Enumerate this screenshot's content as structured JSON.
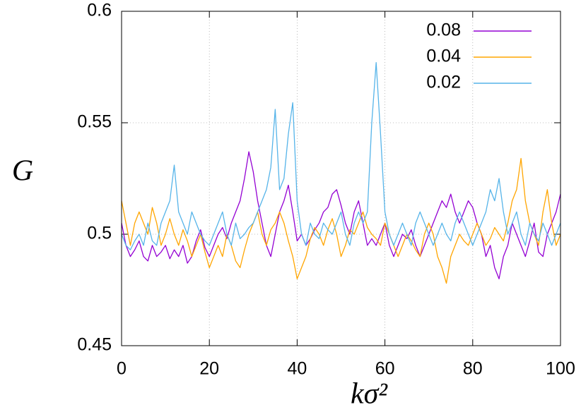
{
  "chart_data": {
    "type": "line",
    "x_label": "kσ²",
    "y_label": "G",
    "x": [
      0,
      1,
      2,
      3,
      4,
      5,
      6,
      7,
      8,
      9,
      10,
      11,
      12,
      13,
      14,
      15,
      16,
      17,
      18,
      19,
      20,
      21,
      22,
      23,
      24,
      25,
      26,
      27,
      28,
      29,
      30,
      31,
      32,
      33,
      34,
      35,
      36,
      37,
      38,
      39,
      40,
      41,
      42,
      43,
      44,
      45,
      46,
      47,
      48,
      49,
      50,
      51,
      52,
      53,
      54,
      55,
      56,
      57,
      58,
      59,
      60,
      61,
      62,
      63,
      64,
      65,
      66,
      67,
      68,
      69,
      70,
      71,
      72,
      73,
      74,
      75,
      76,
      77,
      78,
      79,
      80,
      81,
      82,
      83,
      84,
      85,
      86,
      87,
      88,
      89,
      90,
      91,
      92,
      93,
      94,
      95,
      96,
      97,
      98,
      99,
      100
    ],
    "series": [
      {
        "name": "0.08",
        "color": "#9400d3",
        "values": [
          0.505,
          0.495,
          0.49,
          0.493,
          0.497,
          0.49,
          0.488,
          0.495,
          0.49,
          0.492,
          0.495,
          0.489,
          0.493,
          0.49,
          0.495,
          0.487,
          0.49,
          0.497,
          0.502,
          0.494,
          0.49,
          0.495,
          0.5,
          0.503,
          0.498,
          0.505,
          0.51,
          0.515,
          0.525,
          0.537,
          0.528,
          0.515,
          0.505,
          0.495,
          0.49,
          0.5,
          0.51,
          0.515,
          0.522,
          0.51,
          0.497,
          0.5,
          0.495,
          0.498,
          0.502,
          0.505,
          0.51,
          0.512,
          0.518,
          0.52,
          0.513,
          0.505,
          0.5,
          0.51,
          0.515,
          0.505,
          0.495,
          0.498,
          0.495,
          0.5,
          0.505,
          0.495,
          0.49,
          0.495,
          0.5,
          0.498,
          0.502,
          0.495,
          0.49,
          0.495,
          0.5,
          0.505,
          0.51,
          0.515,
          0.512,
          0.518,
          0.51,
          0.505,
          0.51,
          0.515,
          0.512,
          0.505,
          0.5,
          0.49,
          0.495,
          0.485,
          0.48,
          0.49,
          0.495,
          0.505,
          0.5,
          0.495,
          0.49,
          0.497,
          0.505,
          0.492,
          0.49,
          0.5,
          0.505,
          0.51,
          0.518
        ]
      },
      {
        "name": "0.04",
        "color": "#ffa500",
        "values": [
          0.515,
          0.505,
          0.495,
          0.505,
          0.51,
          0.505,
          0.5,
          0.512,
          0.505,
          0.495,
          0.5,
          0.507,
          0.5,
          0.495,
          0.502,
          0.497,
          0.49,
          0.495,
          0.5,
          0.492,
          0.485,
          0.49,
          0.495,
          0.49,
          0.5,
          0.495,
          0.488,
          0.485,
          0.493,
          0.5,
          0.505,
          0.51,
          0.5,
          0.495,
          0.502,
          0.505,
          0.51,
          0.505,
          0.497,
          0.49,
          0.48,
          0.485,
          0.49,
          0.498,
          0.503,
          0.5,
          0.495,
          0.502,
          0.507,
          0.5,
          0.49,
          0.495,
          0.502,
          0.5,
          0.505,
          0.51,
          0.503,
          0.5,
          0.498,
          0.495,
          0.505,
          0.5,
          0.495,
          0.49,
          0.495,
          0.5,
          0.497,
          0.493,
          0.49,
          0.5,
          0.505,
          0.5,
          0.49,
          0.485,
          0.478,
          0.49,
          0.495,
          0.5,
          0.497,
          0.495,
          0.5,
          0.505,
          0.5,
          0.495,
          0.498,
          0.503,
          0.5,
          0.497,
          0.505,
          0.515,
          0.52,
          0.534,
          0.515,
          0.505,
          0.5,
          0.495,
          0.51,
          0.52,
          0.505,
          0.495,
          0.5
        ]
      },
      {
        "name": "0.02",
        "color": "#56b4e9",
        "values": [
          0.5,
          0.495,
          0.493,
          0.497,
          0.5,
          0.495,
          0.505,
          0.497,
          0.495,
          0.505,
          0.51,
          0.515,
          0.531,
          0.51,
          0.505,
          0.5,
          0.51,
          0.505,
          0.5,
          0.497,
          0.495,
          0.5,
          0.505,
          0.51,
          0.5,
          0.495,
          0.505,
          0.498,
          0.5,
          0.503,
          0.505,
          0.51,
          0.515,
          0.52,
          0.53,
          0.556,
          0.52,
          0.525,
          0.545,
          0.559,
          0.515,
          0.5,
          0.495,
          0.505,
          0.5,
          0.498,
          0.505,
          0.502,
          0.5,
          0.505,
          0.51,
          0.5,
          0.495,
          0.505,
          0.51,
          0.505,
          0.51,
          0.55,
          0.577,
          0.545,
          0.51,
          0.5,
          0.495,
          0.5,
          0.505,
          0.5,
          0.495,
          0.505,
          0.51,
          0.505,
          0.5,
          0.495,
          0.5,
          0.505,
          0.5,
          0.497,
          0.505,
          0.51,
          0.505,
          0.5,
          0.495,
          0.5,
          0.505,
          0.51,
          0.52,
          0.515,
          0.525,
          0.51,
          0.5,
          0.505,
          0.51,
          0.5,
          0.495,
          0.505,
          0.5,
          0.497,
          0.505,
          0.5,
          0.495,
          0.5,
          0.505
        ]
      }
    ],
    "xlim": [
      0,
      100
    ],
    "xticks": [
      0,
      20,
      40,
      60,
      80,
      100
    ],
    "ylim": [
      0.45,
      0.6
    ],
    "yticks": [
      0.45,
      0.5,
      0.55,
      0.6
    ],
    "grid": true,
    "legend": "top-right"
  }
}
